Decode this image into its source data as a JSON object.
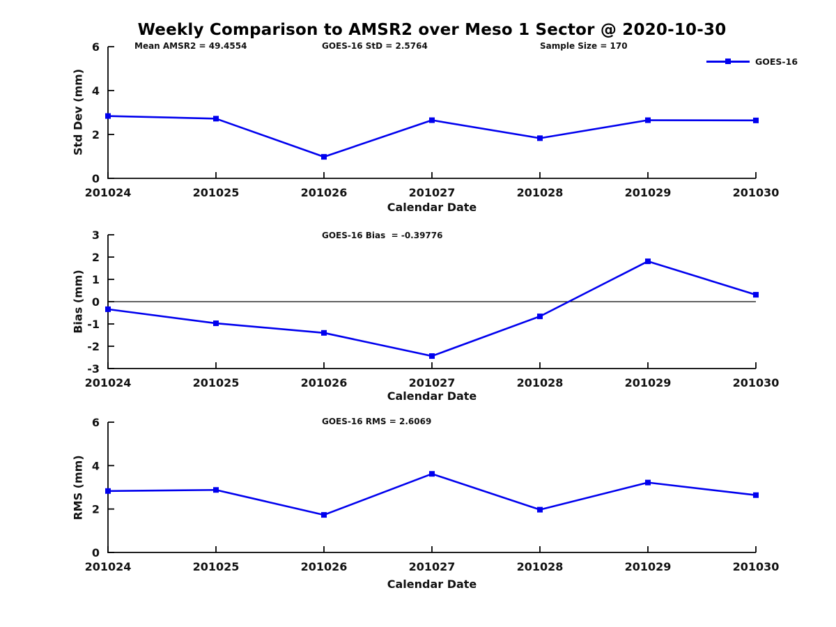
{
  "title": "Weekly Comparison to AMSR2 over Meso 1 Sector @ 2020-10-30",
  "legend": {
    "label": "GOES-16",
    "color": "#0000ee"
  },
  "chart_data": [
    {
      "type": "line",
      "name": "std-dev-weekly",
      "annotations": [
        "Mean AMSR2 = 49.4554",
        "GOES-16 StD = 2.5764",
        "Sample Size = 170"
      ],
      "categories": [
        "201024",
        "201025",
        "201026",
        "201027",
        "201028",
        "201029",
        "201030"
      ],
      "series": [
        {
          "name": "GOES-16",
          "values": [
            2.84,
            2.72,
            0.98,
            2.65,
            1.83,
            2.65,
            2.64
          ]
        }
      ],
      "xlabel": "Calendar Date",
      "ylabel": "Std Dev (mm)",
      "ylim": [
        0,
        6
      ],
      "yticks": [
        0,
        2,
        4,
        6
      ],
      "zero_line": false,
      "grid": false,
      "legend_position": "top-right-outside",
      "line_color": "#0000ee",
      "marker": "square"
    },
    {
      "type": "line",
      "name": "bias-weekly",
      "annotations": [
        "GOES-16 Bias  = -0.39776"
      ],
      "categories": [
        "201024",
        "201025",
        "201026",
        "201027",
        "201028",
        "201029",
        "201030"
      ],
      "series": [
        {
          "name": "GOES-16",
          "values": [
            -0.34,
            -0.97,
            -1.4,
            -2.44,
            -0.66,
            1.81,
            0.31
          ]
        }
      ],
      "xlabel": "Calendar Date",
      "ylabel": "Bias (mm)",
      "ylim": [
        -3,
        3
      ],
      "yticks": [
        -3,
        -2,
        -1,
        0,
        1,
        2,
        3
      ],
      "zero_line": true,
      "grid": false,
      "line_color": "#0000ee",
      "marker": "square"
    },
    {
      "type": "line",
      "name": "rms-weekly",
      "annotations": [
        "GOES-16 RMS = 2.6069"
      ],
      "categories": [
        "201024",
        "201025",
        "201026",
        "201027",
        "201028",
        "201029",
        "201030"
      ],
      "series": [
        {
          "name": "GOES-16",
          "values": [
            2.83,
            2.88,
            1.73,
            3.62,
            1.97,
            3.22,
            2.64
          ]
        }
      ],
      "xlabel": "Calendar Date",
      "ylabel": "RMS (mm)",
      "ylim": [
        0,
        6
      ],
      "yticks": [
        0,
        2,
        4,
        6
      ],
      "zero_line": false,
      "grid": false,
      "line_color": "#0000ee",
      "marker": "square"
    }
  ]
}
